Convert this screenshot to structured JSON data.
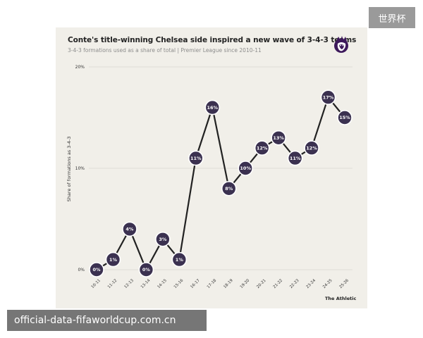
{
  "chart_data": {
    "type": "line",
    "title": "Conte's title-winning Chelsea side inspired a new wave of 3-4-3 teams",
    "subtitle": "3-4-3 formations used as a share of total | Premier League since 2010-11",
    "ylabel": "Share of formations as 3-4-3",
    "xlabel": "",
    "categories": [
      "10-11",
      "11-12",
      "12-13",
      "13-14",
      "14-15",
      "15-16",
      "16-17",
      "17-18",
      "18-19",
      "19-20",
      "20-21",
      "21-22",
      "22-23",
      "23-24",
      "24-25",
      "25-26"
    ],
    "values": [
      0,
      1,
      4,
      0,
      3,
      1,
      11,
      16,
      8,
      10,
      12,
      13,
      11,
      12,
      17,
      15
    ],
    "data_labels": [
      "0%",
      "1%",
      "4%",
      "0%",
      "3%",
      "1%",
      "11%",
      "16%",
      "8%",
      "10%",
      "12%",
      "13%",
      "11%",
      "12%",
      "17%",
      "15%"
    ],
    "y_ticks": [
      "0%",
      "10%",
      "20%"
    ],
    "ylim": [
      0,
      20
    ],
    "grid": true,
    "line_color": "#222222",
    "marker_color": "#3b3150"
  },
  "source_credit": "The Athletic",
  "logo_icon": "premier-league-lion-icon",
  "watermarks": {
    "top_right": "世界杯",
    "bottom_left": "official-data-fifaworldcup.com.cn"
  }
}
